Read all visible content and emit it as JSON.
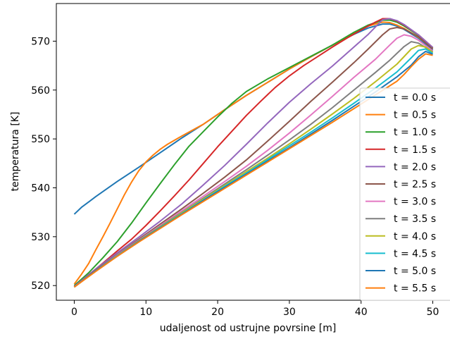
{
  "chart_data": {
    "type": "line",
    "title": "",
    "xlabel": "udaljenost od ustrujne povrsine [m]",
    "ylabel": "temperatura [K]",
    "xlim": [
      -2.5,
      52.5
    ],
    "ylim": [
      517.0,
      577.7
    ],
    "xticks": [
      0,
      10,
      20,
      30,
      40,
      50
    ],
    "yticks": [
      520,
      530,
      540,
      550,
      560,
      570
    ],
    "grid": false,
    "legend_position": "right, clipped at right edge",
    "series": [
      {
        "name": "t = 0.0 s",
        "color": "#1f77b4",
        "points": [
          [
            0,
            534.6
          ],
          [
            1,
            536.0
          ],
          [
            3,
            538.2
          ],
          [
            6,
            541.3
          ],
          [
            9,
            544.2
          ],
          [
            12,
            547.2
          ],
          [
            15,
            550.2
          ],
          [
            18,
            553.0
          ],
          [
            21,
            556.0
          ],
          [
            24,
            558.9
          ],
          [
            27,
            561.6
          ],
          [
            30,
            564.3
          ],
          [
            33,
            566.8
          ],
          [
            36,
            569.2
          ],
          [
            39,
            571.4
          ],
          [
            41,
            572.7
          ],
          [
            43,
            573.5
          ],
          [
            44,
            573.5
          ],
          [
            45,
            573.1
          ],
          [
            46,
            572.4
          ],
          [
            48,
            570.6
          ],
          [
            50,
            568.2
          ]
        ]
      },
      {
        "name": "t = 0.5 s",
        "color": "#ff7f0e",
        "points": [
          [
            0,
            520.3
          ],
          [
            1,
            522.3
          ],
          [
            2,
            524.5
          ],
          [
            3,
            527.3
          ],
          [
            4,
            530.0
          ],
          [
            5,
            532.8
          ],
          [
            6,
            535.7
          ],
          [
            7,
            538.6
          ],
          [
            8,
            541.2
          ],
          [
            9,
            543.5
          ],
          [
            10,
            545.3
          ],
          [
            11,
            546.7
          ],
          [
            12,
            547.9
          ],
          [
            13,
            548.9
          ],
          [
            15,
            550.6
          ],
          [
            18,
            553.0
          ],
          [
            21,
            556.0
          ],
          [
            24,
            558.9
          ],
          [
            27,
            561.6
          ],
          [
            30,
            564.3
          ],
          [
            33,
            566.8
          ],
          [
            36,
            569.2
          ],
          [
            39,
            571.6
          ],
          [
            41,
            573.1
          ],
          [
            43,
            573.9
          ],
          [
            44,
            573.8
          ],
          [
            45,
            573.3
          ],
          [
            46,
            572.6
          ],
          [
            48,
            570.8
          ],
          [
            50,
            568.5
          ]
        ]
      },
      {
        "name": "t = 1.0 s",
        "color": "#2ca02c",
        "points": [
          [
            0,
            520.0
          ],
          [
            2,
            522.6
          ],
          [
            4,
            525.7
          ],
          [
            6,
            529.0
          ],
          [
            8,
            532.8
          ],
          [
            10,
            536.9
          ],
          [
            12,
            540.9
          ],
          [
            14,
            544.8
          ],
          [
            16,
            548.5
          ],
          [
            18,
            551.5
          ],
          [
            20,
            554.5
          ],
          [
            22,
            557.3
          ],
          [
            24,
            559.7
          ],
          [
            27,
            562.3
          ],
          [
            30,
            564.6
          ],
          [
            33,
            566.9
          ],
          [
            36,
            569.2
          ],
          [
            39,
            571.8
          ],
          [
            41,
            573.3
          ],
          [
            43,
            574.3
          ],
          [
            44,
            574.3
          ],
          [
            45,
            573.9
          ],
          [
            46,
            573.1
          ],
          [
            48,
            571.2
          ],
          [
            50,
            568.6
          ]
        ]
      },
      {
        "name": "t = 1.5 s",
        "color": "#d62728",
        "points": [
          [
            0,
            519.8
          ],
          [
            2,
            522.2
          ],
          [
            4,
            524.6
          ],
          [
            6,
            527.1
          ],
          [
            8,
            529.5
          ],
          [
            10,
            532.3
          ],
          [
            12,
            535.3
          ],
          [
            14,
            538.4
          ],
          [
            16,
            541.6
          ],
          [
            18,
            545.0
          ],
          [
            20,
            548.4
          ],
          [
            22,
            551.6
          ],
          [
            24,
            554.8
          ],
          [
            26,
            557.7
          ],
          [
            28,
            560.5
          ],
          [
            30,
            562.9
          ],
          [
            32,
            565.0
          ],
          [
            34,
            566.9
          ],
          [
            36,
            568.8
          ],
          [
            38,
            570.6
          ],
          [
            40,
            572.3
          ],
          [
            42,
            573.9
          ],
          [
            43,
            574.6
          ],
          [
            44,
            574.6
          ],
          [
            45,
            574.1
          ],
          [
            46,
            573.3
          ],
          [
            48,
            571.3
          ],
          [
            50,
            568.7
          ]
        ]
      },
      {
        "name": "t = 2.0 s",
        "color": "#9467bd",
        "points": [
          [
            0,
            519.8
          ],
          [
            3,
            523.4
          ],
          [
            6,
            526.7
          ],
          [
            9,
            529.9
          ],
          [
            12,
            533.2
          ],
          [
            15,
            536.7
          ],
          [
            18,
            540.6
          ],
          [
            21,
            544.6
          ],
          [
            24,
            548.9
          ],
          [
            27,
            553.3
          ],
          [
            30,
            557.5
          ],
          [
            33,
            561.3
          ],
          [
            36,
            564.9
          ],
          [
            39,
            568.8
          ],
          [
            41,
            571.4
          ],
          [
            42,
            572.9
          ],
          [
            43,
            574.4
          ],
          [
            44,
            574.6
          ],
          [
            45,
            574.2
          ],
          [
            46,
            573.4
          ],
          [
            48,
            571.3
          ],
          [
            50,
            568.7
          ]
        ]
      },
      {
        "name": "t = 2.5 s",
        "color": "#8c564b",
        "points": [
          [
            0,
            519.7
          ],
          [
            3,
            523.2
          ],
          [
            6,
            526.4
          ],
          [
            9,
            529.5
          ],
          [
            12,
            532.6
          ],
          [
            15,
            535.7
          ],
          [
            18,
            538.9
          ],
          [
            21,
            542.2
          ],
          [
            24,
            545.7
          ],
          [
            27,
            549.6
          ],
          [
            30,
            553.6
          ],
          [
            33,
            557.7
          ],
          [
            36,
            561.6
          ],
          [
            39,
            565.6
          ],
          [
            41,
            568.4
          ],
          [
            43,
            571.3
          ],
          [
            44,
            572.5
          ],
          [
            45,
            572.8
          ],
          [
            46,
            572.5
          ],
          [
            48,
            570.9
          ],
          [
            50,
            568.4
          ]
        ]
      },
      {
        "name": "t = 3.0 s",
        "color": "#e377c2",
        "points": [
          [
            0,
            519.7
          ],
          [
            3,
            523.1
          ],
          [
            6,
            526.3
          ],
          [
            9,
            529.3
          ],
          [
            12,
            532.3
          ],
          [
            15,
            535.3
          ],
          [
            18,
            538.3
          ],
          [
            21,
            541.3
          ],
          [
            24,
            544.4
          ],
          [
            27,
            547.7
          ],
          [
            30,
            551.2
          ],
          [
            33,
            554.9
          ],
          [
            36,
            558.7
          ],
          [
            39,
            562.6
          ],
          [
            42,
            566.3
          ],
          [
            44,
            569.2
          ],
          [
            45,
            570.6
          ],
          [
            46,
            571.3
          ],
          [
            47,
            571.0
          ],
          [
            48,
            570.2
          ],
          [
            50,
            568.0
          ]
        ]
      },
      {
        "name": "t = 3.5 s",
        "color": "#7f7f7f",
        "points": [
          [
            0,
            519.7
          ],
          [
            3,
            523.1
          ],
          [
            6,
            526.2
          ],
          [
            9,
            529.2
          ],
          [
            12,
            532.1
          ],
          [
            15,
            535.0
          ],
          [
            18,
            537.9
          ],
          [
            21,
            540.8
          ],
          [
            24,
            543.7
          ],
          [
            27,
            546.7
          ],
          [
            30,
            549.8
          ],
          [
            33,
            553.0
          ],
          [
            36,
            556.4
          ],
          [
            39,
            560.0
          ],
          [
            42,
            563.6
          ],
          [
            44,
            566.1
          ],
          [
            46,
            568.9
          ],
          [
            47,
            569.9
          ],
          [
            48,
            569.6
          ],
          [
            50,
            567.8
          ]
        ]
      },
      {
        "name": "t = 4.0 s",
        "color": "#bcbd22",
        "points": [
          [
            0,
            519.7
          ],
          [
            3,
            523.0
          ],
          [
            6,
            526.1
          ],
          [
            9,
            529.1
          ],
          [
            12,
            532.0
          ],
          [
            15,
            534.9
          ],
          [
            18,
            537.7
          ],
          [
            21,
            540.5
          ],
          [
            24,
            543.3
          ],
          [
            27,
            546.1
          ],
          [
            30,
            549.0
          ],
          [
            33,
            552.0
          ],
          [
            36,
            555.1
          ],
          [
            39,
            558.3
          ],
          [
            42,
            561.7
          ],
          [
            45,
            565.3
          ],
          [
            47,
            568.4
          ],
          [
            48,
            569.1
          ],
          [
            49,
            568.8
          ],
          [
            50,
            567.7
          ]
        ]
      },
      {
        "name": "t = 4.5 s",
        "color": "#17becf",
        "points": [
          [
            0,
            519.7
          ],
          [
            3,
            523.0
          ],
          [
            6,
            526.1
          ],
          [
            9,
            529.0
          ],
          [
            12,
            531.9
          ],
          [
            15,
            534.7
          ],
          [
            18,
            537.5
          ],
          [
            21,
            540.3
          ],
          [
            24,
            543.0
          ],
          [
            27,
            545.8
          ],
          [
            30,
            548.6
          ],
          [
            33,
            551.4
          ],
          [
            36,
            554.3
          ],
          [
            39,
            557.3
          ],
          [
            42,
            560.4
          ],
          [
            45,
            563.7
          ],
          [
            47,
            566.6
          ],
          [
            48,
            568.1
          ],
          [
            49,
            568.4
          ],
          [
            50,
            567.5
          ]
        ]
      },
      {
        "name": "t = 5.0 s",
        "color": "#1f77b4",
        "points": [
          [
            0,
            519.7
          ],
          [
            3,
            523.0
          ],
          [
            6,
            526.0
          ],
          [
            9,
            529.0
          ],
          [
            12,
            531.8
          ],
          [
            15,
            534.6
          ],
          [
            18,
            537.4
          ],
          [
            21,
            540.1
          ],
          [
            24,
            542.8
          ],
          [
            27,
            545.5
          ],
          [
            30,
            548.2
          ],
          [
            33,
            551.0
          ],
          [
            36,
            553.8
          ],
          [
            39,
            556.7
          ],
          [
            42,
            559.6
          ],
          [
            45,
            562.7
          ],
          [
            47,
            565.1
          ],
          [
            48,
            566.8
          ],
          [
            49,
            567.9
          ],
          [
            50,
            567.3
          ]
        ]
      },
      {
        "name": "t = 5.5 s",
        "color": "#ff7f0e",
        "points": [
          [
            0,
            519.7
          ],
          [
            3,
            522.9
          ],
          [
            6,
            526.0
          ],
          [
            9,
            528.9
          ],
          [
            12,
            531.7
          ],
          [
            15,
            534.5
          ],
          [
            18,
            537.2
          ],
          [
            21,
            539.9
          ],
          [
            24,
            542.6
          ],
          [
            27,
            545.3
          ],
          [
            30,
            548.0
          ],
          [
            33,
            550.7
          ],
          [
            36,
            553.4
          ],
          [
            39,
            556.2
          ],
          [
            42,
            559.0
          ],
          [
            45,
            561.8
          ],
          [
            46,
            563.2
          ],
          [
            47,
            564.8
          ],
          [
            48,
            566.3
          ],
          [
            49,
            567.4
          ],
          [
            50,
            567.1
          ]
        ]
      }
    ]
  }
}
